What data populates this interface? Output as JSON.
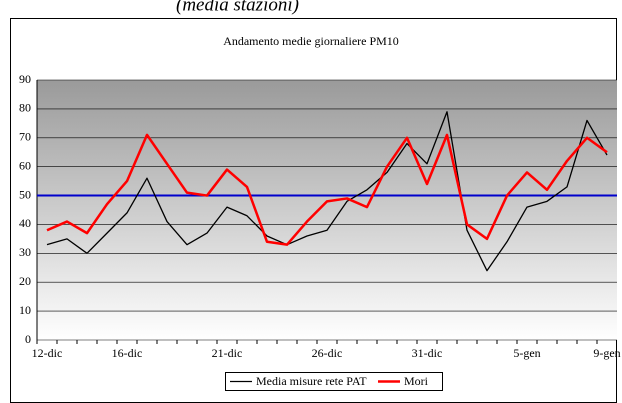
{
  "caption": "(media stazioni)",
  "chart_data": {
    "type": "line",
    "title": "Andamento medie giornaliere PM10",
    "categories": [
      "12-dic",
      null,
      null,
      null,
      "16-dic",
      null,
      null,
      null,
      null,
      "21-dic",
      null,
      null,
      null,
      null,
      "26-dic",
      null,
      null,
      null,
      null,
      "31-dic",
      null,
      null,
      null,
      null,
      "5-gen",
      null,
      null,
      null,
      "9-gen"
    ],
    "series": [
      {
        "name": "Media misure rete PAT",
        "color": "#000000",
        "values": [
          33,
          35,
          30,
          37,
          44,
          56,
          41,
          33,
          37,
          46,
          43,
          36,
          33,
          36,
          38,
          48,
          52,
          58,
          68,
          61,
          79,
          38,
          24,
          34,
          46,
          48,
          53,
          76,
          64
        ]
      },
      {
        "name": "Mori",
        "color": "#ff0000",
        "values": [
          38,
          41,
          37,
          47,
          55,
          71,
          61,
          51,
          50,
          59,
          53,
          34,
          33,
          41,
          48,
          49,
          46,
          60,
          70,
          54,
          71,
          40,
          35,
          50,
          58,
          52,
          62,
          70,
          65
        ]
      }
    ],
    "hline": {
      "value": 50,
      "color": "#0000cc"
    },
    "ylim": [
      0,
      90
    ],
    "yticks": [
      0,
      10,
      20,
      30,
      40,
      50,
      60,
      70,
      80,
      90
    ],
    "grid": true,
    "legend": "bottom"
  }
}
